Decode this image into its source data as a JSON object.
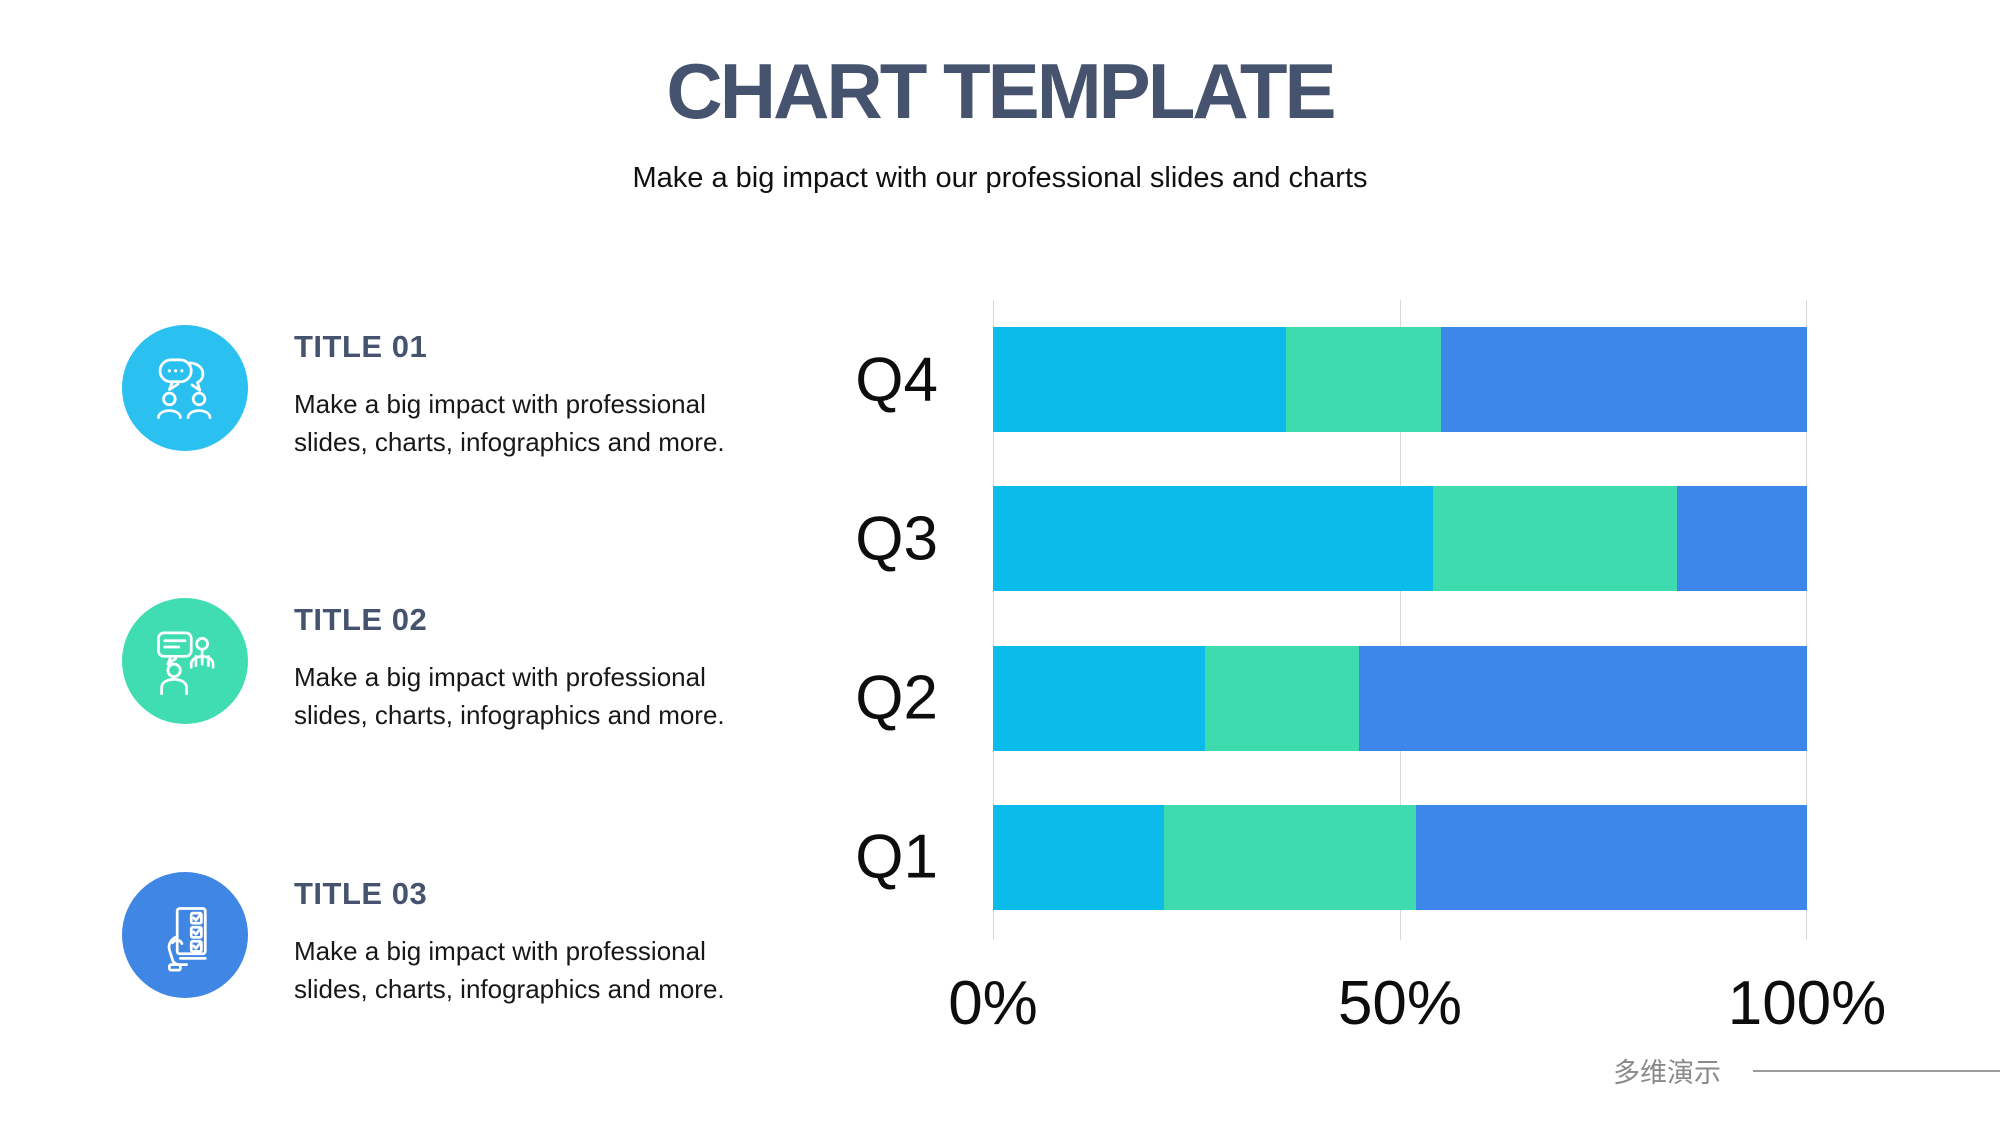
{
  "header": {
    "title": "CHART TEMPLATE",
    "subtitle": "Make a big impact with our professional slides and charts"
  },
  "features": [
    {
      "title": "TITLE 01",
      "description": "Make a big impact with professional slides, charts, infographics and more.",
      "icon": "chat-people-icon",
      "color": "#2ac0f0"
    },
    {
      "title": "TITLE 02",
      "description": "Make a big impact with professional slides, charts, infographics and more.",
      "icon": "presentation-people-icon",
      "color": "#40ddb2"
    },
    {
      "title": "TITLE 03",
      "description": "Make a big impact with professional slides, charts, infographics and more.",
      "icon": "checklist-hand-icon",
      "color": "#3f86e5"
    }
  ],
  "chart_data": {
    "type": "bar",
    "orientation": "horizontal",
    "stacked": true,
    "categories": [
      "Q4",
      "Q3",
      "Q2",
      "Q1"
    ],
    "series": [
      {
        "name": "cyan-series",
        "color": "#0bbceb",
        "values": [
          36,
          54,
          26,
          21
        ]
      },
      {
        "name": "green-series",
        "color": "#3ddbae",
        "values": [
          19,
          30,
          19,
          31
        ]
      },
      {
        "name": "blue-series",
        "color": "#3d87eb",
        "values": [
          45,
          16,
          55,
          48
        ]
      }
    ],
    "xlim": [
      0,
      100
    ],
    "xticks": [
      {
        "value": 0,
        "label": "0%"
      },
      {
        "value": 50,
        "label": "50%"
      },
      {
        "value": 100,
        "label": "100%"
      }
    ],
    "units": "percent",
    "grid": "vertical-gridlines",
    "legend": "none",
    "title": "",
    "xlabel": "",
    "ylabel": ""
  },
  "footer": {
    "watermark": "多维演示"
  }
}
